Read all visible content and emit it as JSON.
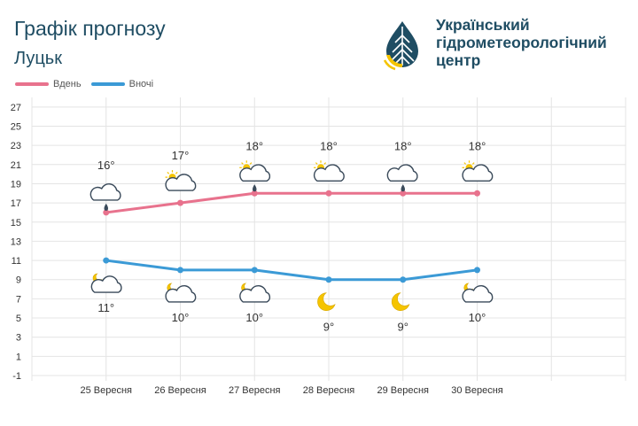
{
  "header": {
    "title": "Графік прогнозу",
    "city": "Луцьк"
  },
  "logo": {
    "line1": "Український",
    "line2": "гідрометеорологічний",
    "line3": "центр",
    "colors": {
      "dark": "#1f4d63",
      "yellow": "#f5c400"
    }
  },
  "legend": {
    "day": "Вдень",
    "night": "Вночі"
  },
  "colors": {
    "day": "#e8728d",
    "night": "#3b9ad6",
    "grid": "#e4e4e4",
    "text": "#333333"
  },
  "chart_data": {
    "type": "line",
    "categories": [
      "25 Вересня",
      "26 Вересня",
      "27 Вересня",
      "28 Вересня",
      "29 Вересня",
      "30 Вересня"
    ],
    "series": [
      {
        "name": "Вдень",
        "values": [
          16,
          17,
          18,
          18,
          18,
          18
        ],
        "labels": [
          "16°",
          "17°",
          "18°",
          "18°",
          "18°",
          "18°"
        ],
        "icons": [
          "cloud-rain-icon",
          "partly-cloudy-day-icon",
          "partly-cloudy-rain-icon",
          "partly-cloudy-day-icon",
          "cloud-rain-icon",
          "partly-cloudy-day-icon"
        ]
      },
      {
        "name": "Вночі",
        "values": [
          11,
          10,
          10,
          9,
          9,
          10
        ],
        "labels": [
          "11°",
          "10°",
          "10°",
          "9°",
          "9°",
          "10°"
        ],
        "icons": [
          "partly-cloudy-night-icon",
          "partly-cloudy-night-icon",
          "partly-cloudy-night-icon",
          "moon-icon",
          "moon-icon",
          "partly-cloudy-night-icon"
        ]
      }
    ],
    "yticks": [
      27,
      25,
      23,
      21,
      19,
      17,
      15,
      13,
      11,
      9,
      7,
      5,
      3,
      1,
      -1
    ],
    "ylim": [
      -1,
      28
    ],
    "grid": true,
    "legend_position": "top-left"
  }
}
